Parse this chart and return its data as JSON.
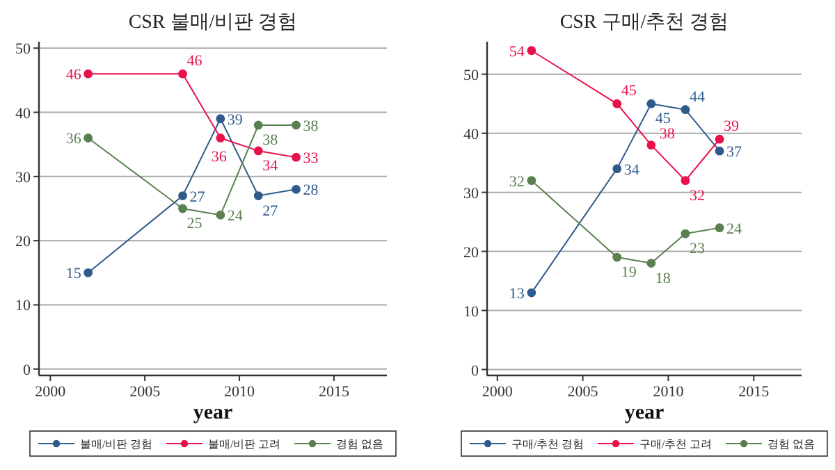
{
  "chart_data": [
    {
      "type": "line",
      "title": "CSR 불매/비판 경험",
      "xlabel": "year",
      "x": [
        2002,
        2007,
        2009,
        2011,
        2013
      ],
      "xlim": [
        1999.4,
        2017.8
      ],
      "xticks": [
        2000,
        2005,
        2010,
        2015
      ],
      "ylim": [
        -1,
        51
      ],
      "yticks": [
        0,
        10,
        20,
        30,
        40,
        50
      ],
      "grid": "y",
      "legend": "bottom",
      "marker": "circle",
      "data_labels": true,
      "series": [
        {
          "name": "불매/비판 경험",
          "color": "#2f5b8c",
          "values": [
            15,
            27,
            39,
            27,
            28
          ]
        },
        {
          "name": "불매/비판 고려",
          "color": "#e8114a",
          "values": [
            46,
            46,
            36,
            34,
            33
          ]
        },
        {
          "name": "경험 없음",
          "color": "#5a8050",
          "values": [
            36,
            25,
            24,
            38,
            38
          ]
        }
      ]
    },
    {
      "type": "line",
      "title": "CSR 구매/추천 경험",
      "xlabel": "year",
      "x": [
        2002,
        2007,
        2009,
        2011,
        2013
      ],
      "xlim": [
        1999.4,
        2017.8
      ],
      "xticks": [
        2000,
        2005,
        2010,
        2015
      ],
      "ylim": [
        -1,
        55.5
      ],
      "yticks": [
        0,
        10,
        20,
        30,
        40,
        50
      ],
      "grid": "y",
      "legend": "bottom",
      "marker": "circle",
      "data_labels": true,
      "series": [
        {
          "name": "구매/추천 경험",
          "color": "#2f5b8c",
          "values": [
            13,
            34,
            45,
            44,
            37
          ]
        },
        {
          "name": "구매/추천 고려",
          "color": "#e8114a",
          "values": [
            54,
            45,
            38,
            32,
            39
          ]
        },
        {
          "name": "경험 없음",
          "color": "#5a8050",
          "values": [
            32,
            19,
            18,
            23,
            24
          ]
        }
      ]
    }
  ]
}
